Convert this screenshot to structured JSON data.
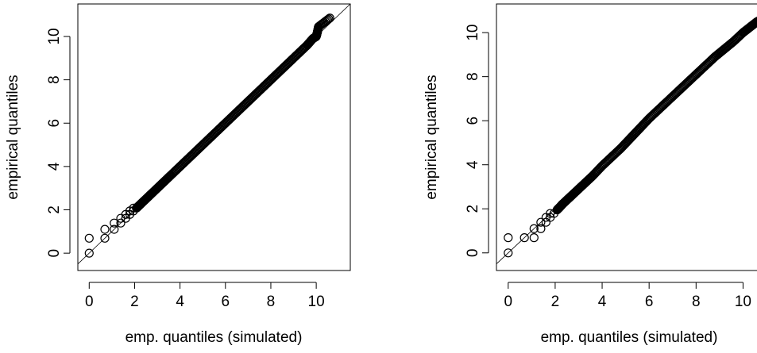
{
  "chart_data": [
    {
      "type": "scatter",
      "title": "",
      "xlabel": "emp. quantiles (simulated)",
      "ylabel": "empirical quantiles",
      "xlim": [
        -0.5,
        11.5
      ],
      "ylim": [
        -0.8,
        11.5
      ],
      "xticks": [
        0,
        2,
        4,
        6,
        8,
        10
      ],
      "yticks": [
        0,
        2,
        4,
        6,
        8,
        10
      ],
      "reference_line": "y = x",
      "grid": false,
      "series": [
        {
          "points": [
            [
              0,
              0
            ],
            [
              0,
              0.69
            ],
            [
              0.69,
              0.69
            ],
            [
              0.69,
              1.1
            ],
            [
              1.1,
              1.1
            ],
            [
              1.1,
              1.39
            ],
            [
              1.39,
              1.39
            ],
            [
              1.39,
              1.61
            ],
            [
              1.61,
              1.61
            ],
            [
              1.61,
              1.79
            ],
            [
              1.79,
              1.79
            ],
            [
              1.79,
              1.95
            ],
            [
              1.95,
              1.95
            ],
            [
              1.95,
              2.08
            ],
            [
              2.08,
              2.08
            ],
            [
              2.2,
              2.2
            ],
            [
              2.3,
              2.3
            ],
            [
              2.5,
              2.5
            ],
            [
              2.7,
              2.7
            ],
            [
              3.0,
              3.0
            ],
            [
              3.3,
              3.3
            ],
            [
              3.6,
              3.6
            ],
            [
              4.0,
              4.0
            ],
            [
              4.4,
              4.4
            ],
            [
              4.8,
              4.8
            ],
            [
              5.2,
              5.2
            ],
            [
              5.6,
              5.6
            ],
            [
              6.0,
              6.0
            ],
            [
              6.4,
              6.4
            ],
            [
              6.8,
              6.8
            ],
            [
              7.2,
              7.2
            ],
            [
              7.6,
              7.6
            ],
            [
              8.0,
              8.0
            ],
            [
              8.4,
              8.4
            ],
            [
              8.8,
              8.8
            ],
            [
              9.2,
              9.2
            ],
            [
              9.6,
              9.6
            ],
            [
              9.85,
              9.9
            ],
            [
              10.0,
              10.0
            ],
            [
              10.05,
              10.2
            ],
            [
              10.1,
              10.45
            ],
            [
              10.6,
              10.85
            ]
          ]
        }
      ]
    },
    {
      "type": "scatter",
      "title": "",
      "xlabel": "emp. quantiles (simulated)",
      "ylabel": "empirical quantiles",
      "xlim": [
        -0.5,
        11.0
      ],
      "ylim": [
        -0.8,
        11.3
      ],
      "xticks": [
        0,
        2,
        4,
        6,
        8,
        10
      ],
      "yticks": [
        0,
        2,
        4,
        6,
        8,
        10
      ],
      "reference_line": "y = x",
      "grid": false,
      "series": [
        {
          "points": [
            [
              0,
              0
            ],
            [
              0,
              0.69
            ],
            [
              0.69,
              0.69
            ],
            [
              1.1,
              0.69
            ],
            [
              1.1,
              1.1
            ],
            [
              1.39,
              1.1
            ],
            [
              1.39,
              1.39
            ],
            [
              1.61,
              1.39
            ],
            [
              1.61,
              1.61
            ],
            [
              1.79,
              1.61
            ],
            [
              1.79,
              1.79
            ],
            [
              1.95,
              1.79
            ],
            [
              2.08,
              1.95
            ],
            [
              2.2,
              2.08
            ],
            [
              2.3,
              2.2
            ],
            [
              2.5,
              2.4
            ],
            [
              2.7,
              2.6
            ],
            [
              3.0,
              2.9
            ],
            [
              3.3,
              3.2
            ],
            [
              3.6,
              3.5
            ],
            [
              4.0,
              3.95
            ],
            [
              4.4,
              4.35
            ],
            [
              4.8,
              4.75
            ],
            [
              5.2,
              5.2
            ],
            [
              5.6,
              5.65
            ],
            [
              6.0,
              6.1
            ],
            [
              6.4,
              6.5
            ],
            [
              6.8,
              6.9
            ],
            [
              7.2,
              7.3
            ],
            [
              7.6,
              7.7
            ],
            [
              8.0,
              8.1
            ],
            [
              8.4,
              8.5
            ],
            [
              8.8,
              8.9
            ],
            [
              9.2,
              9.25
            ],
            [
              9.6,
              9.6
            ],
            [
              10.0,
              10.0
            ],
            [
              10.3,
              10.25
            ],
            [
              10.6,
              10.5
            ],
            [
              10.8,
              10.6
            ],
            [
              10.9,
              10.85
            ]
          ]
        }
      ]
    }
  ]
}
